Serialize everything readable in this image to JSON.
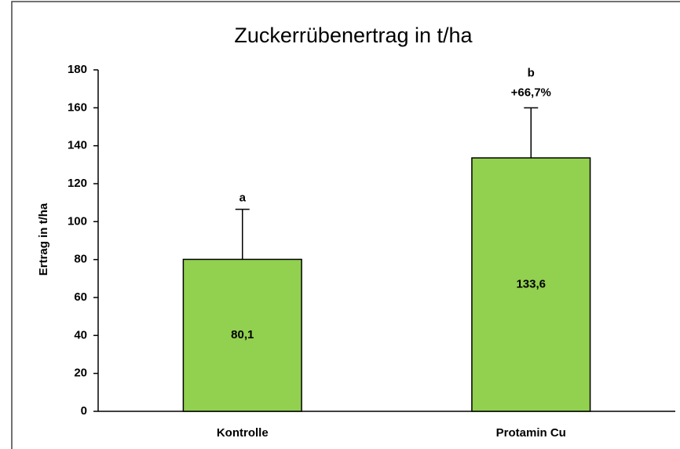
{
  "chart_data": {
    "type": "bar",
    "title": "Zuckerrübenertrag in t/ha",
    "y_label": "Ertrag in t/ha",
    "categories": [
      "Kontrolle",
      "Protamin Cu"
    ],
    "values": [
      80.1,
      133.6
    ],
    "value_labels": [
      "80,1",
      "133,6"
    ],
    "errors": [
      26.4,
      26.4
    ],
    "group_letters": [
      "a",
      "b"
    ],
    "annotations": [
      "+66,7%"
    ],
    "color": "#92d050",
    "ylim": [
      0,
      180
    ],
    "yticks": [
      0,
      20,
      40,
      60,
      80,
      100,
      120,
      140,
      160,
      180
    ],
    "grid": false
  }
}
